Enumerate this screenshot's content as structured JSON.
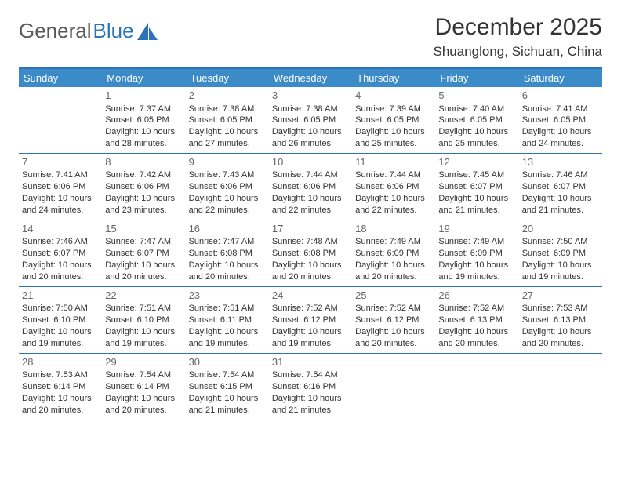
{
  "brand": {
    "part1": "General",
    "part2": "Blue"
  },
  "title": "December 2025",
  "location": "Shuanglong, Sichuan, China",
  "colors": {
    "header_bar": "#3b8bc9",
    "rule": "#2d73b9",
    "text": "#333333",
    "daynum": "#666666",
    "weekday_text": "#ffffff",
    "background": "#ffffff"
  },
  "weekdays": [
    "Sunday",
    "Monday",
    "Tuesday",
    "Wednesday",
    "Thursday",
    "Friday",
    "Saturday"
  ],
  "weeks": [
    [
      {
        "n": "",
        "sr": "",
        "ss": "",
        "dl": ""
      },
      {
        "n": "1",
        "sr": "Sunrise: 7:37 AM",
        "ss": "Sunset: 6:05 PM",
        "dl": "Daylight: 10 hours and 28 minutes."
      },
      {
        "n": "2",
        "sr": "Sunrise: 7:38 AM",
        "ss": "Sunset: 6:05 PM",
        "dl": "Daylight: 10 hours and 27 minutes."
      },
      {
        "n": "3",
        "sr": "Sunrise: 7:38 AM",
        "ss": "Sunset: 6:05 PM",
        "dl": "Daylight: 10 hours and 26 minutes."
      },
      {
        "n": "4",
        "sr": "Sunrise: 7:39 AM",
        "ss": "Sunset: 6:05 PM",
        "dl": "Daylight: 10 hours and 25 minutes."
      },
      {
        "n": "5",
        "sr": "Sunrise: 7:40 AM",
        "ss": "Sunset: 6:05 PM",
        "dl": "Daylight: 10 hours and 25 minutes."
      },
      {
        "n": "6",
        "sr": "Sunrise: 7:41 AM",
        "ss": "Sunset: 6:05 PM",
        "dl": "Daylight: 10 hours and 24 minutes."
      }
    ],
    [
      {
        "n": "7",
        "sr": "Sunrise: 7:41 AM",
        "ss": "Sunset: 6:06 PM",
        "dl": "Daylight: 10 hours and 24 minutes."
      },
      {
        "n": "8",
        "sr": "Sunrise: 7:42 AM",
        "ss": "Sunset: 6:06 PM",
        "dl": "Daylight: 10 hours and 23 minutes."
      },
      {
        "n": "9",
        "sr": "Sunrise: 7:43 AM",
        "ss": "Sunset: 6:06 PM",
        "dl": "Daylight: 10 hours and 22 minutes."
      },
      {
        "n": "10",
        "sr": "Sunrise: 7:44 AM",
        "ss": "Sunset: 6:06 PM",
        "dl": "Daylight: 10 hours and 22 minutes."
      },
      {
        "n": "11",
        "sr": "Sunrise: 7:44 AM",
        "ss": "Sunset: 6:06 PM",
        "dl": "Daylight: 10 hours and 22 minutes."
      },
      {
        "n": "12",
        "sr": "Sunrise: 7:45 AM",
        "ss": "Sunset: 6:07 PM",
        "dl": "Daylight: 10 hours and 21 minutes."
      },
      {
        "n": "13",
        "sr": "Sunrise: 7:46 AM",
        "ss": "Sunset: 6:07 PM",
        "dl": "Daylight: 10 hours and 21 minutes."
      }
    ],
    [
      {
        "n": "14",
        "sr": "Sunrise: 7:46 AM",
        "ss": "Sunset: 6:07 PM",
        "dl": "Daylight: 10 hours and 20 minutes."
      },
      {
        "n": "15",
        "sr": "Sunrise: 7:47 AM",
        "ss": "Sunset: 6:07 PM",
        "dl": "Daylight: 10 hours and 20 minutes."
      },
      {
        "n": "16",
        "sr": "Sunrise: 7:47 AM",
        "ss": "Sunset: 6:08 PM",
        "dl": "Daylight: 10 hours and 20 minutes."
      },
      {
        "n": "17",
        "sr": "Sunrise: 7:48 AM",
        "ss": "Sunset: 6:08 PM",
        "dl": "Daylight: 10 hours and 20 minutes."
      },
      {
        "n": "18",
        "sr": "Sunrise: 7:49 AM",
        "ss": "Sunset: 6:09 PM",
        "dl": "Daylight: 10 hours and 20 minutes."
      },
      {
        "n": "19",
        "sr": "Sunrise: 7:49 AM",
        "ss": "Sunset: 6:09 PM",
        "dl": "Daylight: 10 hours and 19 minutes."
      },
      {
        "n": "20",
        "sr": "Sunrise: 7:50 AM",
        "ss": "Sunset: 6:09 PM",
        "dl": "Daylight: 10 hours and 19 minutes."
      }
    ],
    [
      {
        "n": "21",
        "sr": "Sunrise: 7:50 AM",
        "ss": "Sunset: 6:10 PM",
        "dl": "Daylight: 10 hours and 19 minutes."
      },
      {
        "n": "22",
        "sr": "Sunrise: 7:51 AM",
        "ss": "Sunset: 6:10 PM",
        "dl": "Daylight: 10 hours and 19 minutes."
      },
      {
        "n": "23",
        "sr": "Sunrise: 7:51 AM",
        "ss": "Sunset: 6:11 PM",
        "dl": "Daylight: 10 hours and 19 minutes."
      },
      {
        "n": "24",
        "sr": "Sunrise: 7:52 AM",
        "ss": "Sunset: 6:12 PM",
        "dl": "Daylight: 10 hours and 19 minutes."
      },
      {
        "n": "25",
        "sr": "Sunrise: 7:52 AM",
        "ss": "Sunset: 6:12 PM",
        "dl": "Daylight: 10 hours and 20 minutes."
      },
      {
        "n": "26",
        "sr": "Sunrise: 7:52 AM",
        "ss": "Sunset: 6:13 PM",
        "dl": "Daylight: 10 hours and 20 minutes."
      },
      {
        "n": "27",
        "sr": "Sunrise: 7:53 AM",
        "ss": "Sunset: 6:13 PM",
        "dl": "Daylight: 10 hours and 20 minutes."
      }
    ],
    [
      {
        "n": "28",
        "sr": "Sunrise: 7:53 AM",
        "ss": "Sunset: 6:14 PM",
        "dl": "Daylight: 10 hours and 20 minutes."
      },
      {
        "n": "29",
        "sr": "Sunrise: 7:54 AM",
        "ss": "Sunset: 6:14 PM",
        "dl": "Daylight: 10 hours and 20 minutes."
      },
      {
        "n": "30",
        "sr": "Sunrise: 7:54 AM",
        "ss": "Sunset: 6:15 PM",
        "dl": "Daylight: 10 hours and 21 minutes."
      },
      {
        "n": "31",
        "sr": "Sunrise: 7:54 AM",
        "ss": "Sunset: 6:16 PM",
        "dl": "Daylight: 10 hours and 21 minutes."
      },
      {
        "n": "",
        "sr": "",
        "ss": "",
        "dl": ""
      },
      {
        "n": "",
        "sr": "",
        "ss": "",
        "dl": ""
      },
      {
        "n": "",
        "sr": "",
        "ss": "",
        "dl": ""
      }
    ]
  ]
}
